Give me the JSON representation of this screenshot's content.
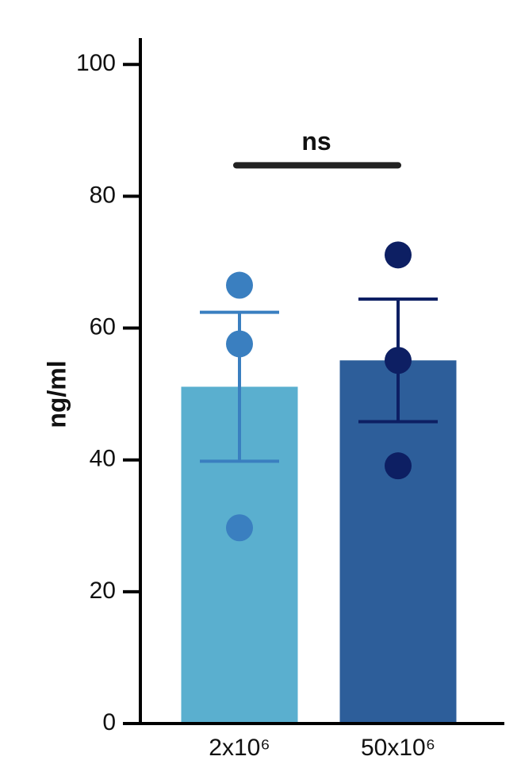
{
  "chart_data": {
    "type": "bar",
    "y_label": "ng/ml",
    "categories": [
      "2x10⁶",
      "50x10⁶"
    ],
    "values": [
      51.1,
      55.1
    ],
    "errors": [
      11.3,
      9.3
    ],
    "colors": [
      "#5aafcf",
      "#2d5e9a"
    ],
    "point_colors": [
      "#3a7fc0",
      "#0d1f63"
    ],
    "points": [
      [
        66.5,
        57.6,
        29.7
      ],
      [
        71.1,
        55.1,
        39.1
      ]
    ],
    "ylim": [
      0,
      104
    ],
    "yticks": [
      0,
      20,
      40,
      60,
      80,
      100
    ],
    "significance": {
      "label": "ns",
      "y": 84.7
    }
  }
}
